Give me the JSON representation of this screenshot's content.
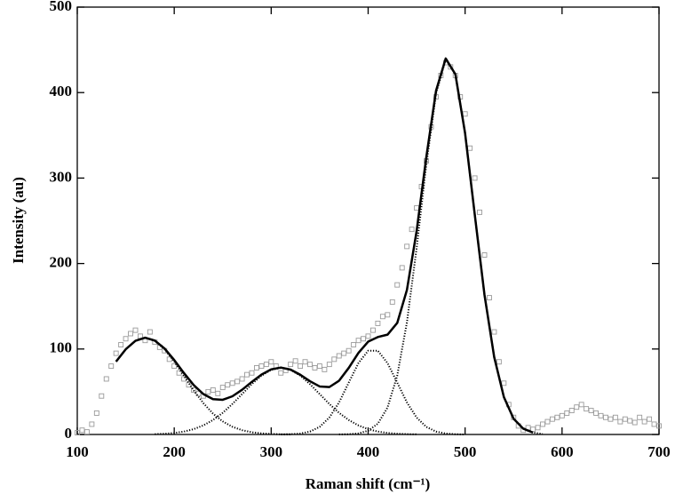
{
  "chart_data": {
    "type": "line",
    "xlabel": "Raman shift (cm⁻¹)",
    "ylabel": "Intensity (au)",
    "xlim": [
      100,
      700
    ],
    "ylim": [
      0,
      500
    ],
    "xticks": [
      100,
      200,
      300,
      400,
      500,
      600,
      700
    ],
    "yticks": [
      0,
      100,
      200,
      300,
      400,
      500
    ],
    "series": [
      {
        "mark": "square",
        "color": "#9a9a9a",
        "x": [
          100,
          105,
          110,
          115,
          120,
          125,
          130,
          135,
          140,
          145,
          150,
          155,
          160,
          165,
          170,
          175,
          180,
          185,
          190,
          195,
          200,
          205,
          210,
          215,
          220,
          225,
          230,
          235,
          240,
          245,
          250,
          255,
          260,
          265,
          270,
          275,
          280,
          285,
          290,
          295,
          300,
          305,
          310,
          315,
          320,
          325,
          330,
          335,
          340,
          345,
          350,
          355,
          360,
          365,
          370,
          375,
          380,
          385,
          390,
          395,
          400,
          405,
          410,
          415,
          420,
          425,
          430,
          435,
          440,
          445,
          450,
          455,
          460,
          465,
          470,
          475,
          480,
          485,
          490,
          495,
          500,
          505,
          510,
          515,
          520,
          525,
          530,
          535,
          540,
          545,
          550,
          555,
          560,
          565,
          570,
          575,
          580,
          585,
          590,
          595,
          600,
          605,
          610,
          615,
          620,
          625,
          630,
          635,
          640,
          645,
          650,
          655,
          660,
          665,
          670,
          675,
          680,
          685,
          690,
          695,
          700
        ],
        "values": [
          2,
          5,
          3,
          12,
          25,
          45,
          65,
          80,
          95,
          105,
          112,
          118,
          122,
          115,
          110,
          120,
          108,
          102,
          98,
          88,
          80,
          72,
          65,
          58,
          52,
          48,
          45,
          50,
          52,
          48,
          55,
          58,
          60,
          62,
          65,
          70,
          72,
          78,
          80,
          82,
          85,
          80,
          72,
          75,
          82,
          86,
          80,
          85,
          82,
          78,
          80,
          76,
          82,
          88,
          92,
          95,
          98,
          105,
          110,
          112,
          115,
          122,
          130,
          138,
          140,
          155,
          175,
          195,
          220,
          240,
          265,
          290,
          320,
          360,
          395,
          420,
          435,
          430,
          420,
          395,
          375,
          335,
          300,
          260,
          210,
          160,
          120,
          85,
          60,
          35,
          20,
          10,
          5,
          8,
          6,
          8,
          12,
          15,
          18,
          20,
          22,
          25,
          28,
          32,
          35,
          30,
          28,
          25,
          22,
          20,
          18,
          20,
          15,
          18,
          16,
          14,
          20,
          15,
          18,
          12,
          10
        ]
      },
      {
        "mark": "line",
        "dash": "solid",
        "color": "#000000",
        "x": [
          140,
          150,
          160,
          170,
          180,
          190,
          200,
          210,
          220,
          230,
          240,
          250,
          260,
          270,
          280,
          290,
          300,
          310,
          320,
          330,
          340,
          350,
          360,
          370,
          380,
          390,
          400,
          410,
          420,
          430,
          440,
          450,
          460,
          470,
          480,
          490,
          500,
          510,
          520,
          530,
          540,
          550,
          560,
          570
        ],
        "values": [
          85.3,
          99.7,
          109.6,
          113.2,
          109.9,
          100.6,
          87.1,
          71.9,
          57.9,
          47.3,
          41.3,
          40.6,
          44.7,
          52.3,
          61.5,
          70.1,
          76.2,
          78.3,
          75.9,
          69.9,
          62.3,
          56.2,
          55.5,
          62.9,
          77.9,
          95.4,
          108.6,
          114.0,
          116.8,
          130.5,
          169.1,
          238.0,
          324.5,
          402.0,
          439.9,
          421.4,
          352.3,
          257.0,
          163.4,
          90.6,
          43.8,
          18.5,
          6.8,
          2.2
        ]
      },
      {
        "mark": "line",
        "dash": "dotted",
        "color": "#000000",
        "x": [
          140,
          150,
          160,
          170,
          180,
          190,
          200,
          210,
          220,
          230,
          240,
          250,
          260,
          270,
          280,
          290,
          300,
          310,
          320
        ],
        "values": [
          85.3,
          99.7,
          109.5,
          113,
          109.5,
          99.7,
          85.3,
          68.5,
          51.7,
          36.7,
          24.4,
          15.3,
          9.0,
          5.0,
          2.6,
          1.3,
          0.6,
          0.2,
          0.1
        ]
      },
      {
        "mark": "line",
        "dash": "dotted",
        "color": "#000000",
        "x": [
          180,
          190,
          200,
          210,
          220,
          230,
          240,
          250,
          260,
          270,
          280,
          290,
          300,
          310,
          320,
          330,
          340,
          350,
          360,
          370,
          380,
          390,
          400,
          410,
          420,
          430,
          440,
          450
        ],
        "values": [
          0.4,
          0.9,
          1.8,
          3.4,
          6.2,
          10.6,
          16.9,
          25.3,
          35.7,
          47.3,
          58.9,
          68.8,
          75.6,
          78,
          75.6,
          68.8,
          58.9,
          47.3,
          35.7,
          25.3,
          16.9,
          10.6,
          6.2,
          3.4,
          1.8,
          0.9,
          0.4,
          0.2
        ]
      },
      {
        "mark": "line",
        "dash": "dotted",
        "color": "#000000",
        "x": [
          310,
          320,
          330,
          340,
          350,
          360,
          370,
          380,
          390,
          400,
          410,
          420,
          430,
          440,
          450,
          460,
          470,
          480,
          490,
          500
        ],
        "values": [
          0.1,
          0.3,
          1.1,
          3.4,
          8.9,
          19.8,
          37.5,
          60.7,
          83.5,
          98.0,
          98.0,
          83.5,
          60.7,
          37.5,
          19.8,
          8.9,
          3.4,
          1.1,
          0.3,
          0
        ]
      },
      {
        "mark": "line",
        "dash": "dotted",
        "color": "#000000",
        "x": [
          370,
          380,
          390,
          400,
          410,
          420,
          430,
          440,
          450,
          460,
          470,
          480,
          490,
          500,
          510,
          520,
          530,
          540,
          550,
          560,
          570,
          580
        ],
        "values": [
          0.1,
          0.3,
          1.3,
          4.4,
          12.6,
          31.5,
          68.9,
          131.2,
          218.0,
          315.6,
          398.6,
          438.8,
          421.1,
          352.3,
          257.0,
          163.4,
          90.6,
          43.8,
          18.5,
          6.8,
          2.2,
          0.6
        ]
      }
    ]
  }
}
